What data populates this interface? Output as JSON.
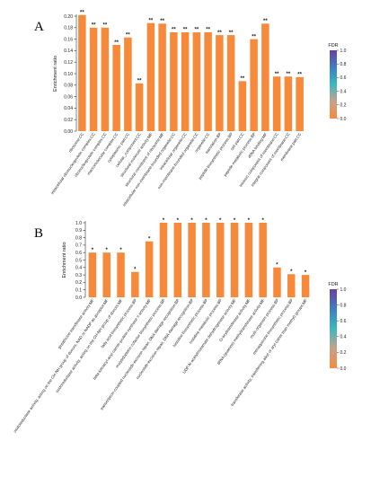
{
  "bar_color": "#f7893a",
  "chart_data": [
    {
      "type": "bar",
      "panel_label": "A",
      "ylabel": "Enrichment ratio",
      "ylim": [
        0,
        0.2
      ],
      "yticks": [
        0.0,
        0.02,
        0.04,
        0.06,
        0.08,
        0.1,
        0.12,
        0.14,
        0.16,
        0.18,
        0.2
      ],
      "categories": [
        "ribosome:CC",
        "intracellular ribonucleoprotein complex:CC",
        "ribonucleoprotein complex:CC",
        "macromolecular complex:CC",
        "cytoplasmic part:CC",
        "cellular_component:CC",
        "structural molecule activity:MF",
        "structural constituent of ribosome:MF",
        "intracellular non-membrane-bounded organelle:CC",
        "intracellular organelle:CC",
        "non-membrane-bounded organelle:CC",
        "organelle:CC",
        "translation:BP",
        "peptide biosynthetic process:BP",
        "cell part:CC",
        "peptide metabolic process:BP",
        "rRNA binding:MF",
        "intrinsic component of membrane:CC",
        "integral component of membrane:CC",
        "membrane part:CC"
      ],
      "values": [
        0.202,
        0.18,
        0.18,
        0.15,
        0.163,
        0.083,
        0.188,
        0.187,
        0.172,
        0.172,
        0.172,
        0.172,
        0.167,
        0.167,
        0.087,
        0.16,
        0.187,
        0.095,
        0.095,
        0.094
      ],
      "annotations": [
        "**",
        "**",
        "**",
        "**",
        "**",
        "**",
        "**",
        "**",
        "**",
        "**",
        "**",
        "**",
        "**",
        "**",
        "**",
        "**",
        "**",
        "**",
        "**",
        "**"
      ],
      "legend": {
        "title": "FDR",
        "ticks": [
          "1.0",
          "0.8",
          "0.6",
          "0.4",
          "0.2",
          "0.0"
        ]
      }
    },
    {
      "type": "bar",
      "panel_label": "B",
      "ylabel": "Enrichment ratio",
      "ylim": [
        0,
        1.0
      ],
      "yticks": [
        0.0,
        0.1,
        0.2,
        0.3,
        0.4,
        0.5,
        0.6,
        0.7,
        0.8,
        0.9,
        1.0
      ],
      "categories": [
        "glutathione transferase activity:MF",
        "oxidoreductase activity, acting on the CH-NH group of donors, NAD or NADP as acceptor:MF",
        "oxidoreductase activity, acting on the CH-NH group of donors:MF",
        "fatty acid biosynthetic process:BP",
        "beta-ketoacyl-acyl-carrier-protein synthase II activity:MF",
        "molybdopterin cofactor biosynthetic process:BP",
        "transcription-coupled nucleotide-excision repair, DNA damage recognition:BP",
        "nucleotide-excision repair, DNA damage recognition:BP",
        "histidine biosynthetic process:BP",
        "histidine metabolic process:BP",
        "UDP-N-acetylmuramate dehydrogenase activity:MF",
        "O-acyltransferase activity:MF",
        "tRNA (guanine) methyltransferase activity:MF",
        "multi-organism process:BP",
        "menaquinone biosynthetic process:BP",
        "transferase activity, transferring alkyl or aryl (other than methyl) groups:MF"
      ],
      "values": [
        0.6,
        0.6,
        0.6,
        0.34,
        0.75,
        1.0,
        1.0,
        1.0,
        1.0,
        1.0,
        1.0,
        1.0,
        1.0,
        0.4,
        0.31,
        0.3
      ],
      "annotations": [
        "*",
        "*",
        "*",
        "*",
        "*",
        "*",
        "*",
        "*",
        "*",
        "*",
        "*",
        "*",
        "*",
        "*",
        "*",
        "*"
      ],
      "legend": {
        "title": "FDR",
        "ticks": [
          "1.0",
          "0.8",
          "0.6",
          "0.4",
          "0.2",
          "0.0"
        ]
      }
    }
  ]
}
